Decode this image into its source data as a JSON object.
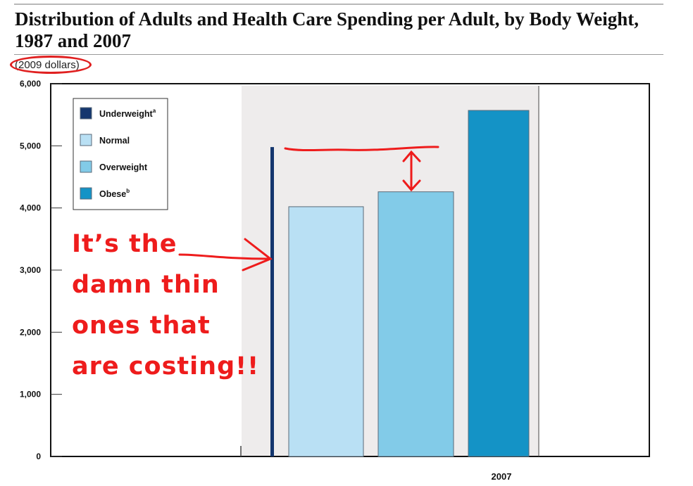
{
  "title": "Distribution of Adults and Health Care Spending per Adult, by Body Weight, 1987 and 2007",
  "subtitle": "(2009 dollars)",
  "annotation": "It’s the\ndamn thin\nones that\nare costing!!",
  "colors": {
    "underweight": "#14366e",
    "normal": "#b9e0f4",
    "overweight": "#82cbe8",
    "obese": "#1493c6",
    "shade": "#eeecec",
    "annotation": "#ee1c1c"
  },
  "chart_data": {
    "type": "bar",
    "title": "Distribution of Adults and Health Care Spending per Adult, by Body Weight, 1987 and 2007",
    "ylabel": "(2009 dollars)",
    "ylim": [
      0,
      6000
    ],
    "yticks": [
      "0",
      "1,000",
      "2,000",
      "3,000",
      "4,000",
      "5,000",
      "6,000"
    ],
    "ytick_values": [
      0,
      1000,
      2000,
      3000,
      4000,
      5000,
      6000
    ],
    "categories": [
      "2007"
    ],
    "legend_position": "top-left",
    "series": [
      {
        "name": "Underweight",
        "superscript": "a",
        "values": [
          4980
        ]
      },
      {
        "name": "Normal",
        "superscript": "",
        "values": [
          4020
        ]
      },
      {
        "name": "Overweight",
        "superscript": "",
        "values": [
          4260
        ]
      },
      {
        "name": "Obese",
        "superscript": "b",
        "values": [
          5570
        ]
      }
    ]
  }
}
